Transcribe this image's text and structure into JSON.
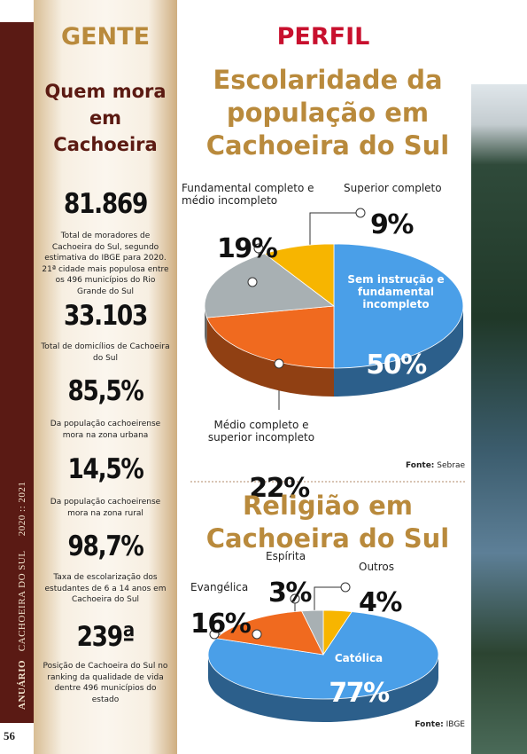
{
  "sidebar": {
    "publication": "ANUÁRIO",
    "title": "CACHOEIRA DO SUL",
    "years": "2020 :: 2021",
    "page": "56"
  },
  "left": {
    "heading": "GENTE",
    "subtitle": "Quem mora em Cachoeira",
    "stats": [
      {
        "value": "81.869",
        "text": "Total de moradores de Cachoeira do Sul, segundo estimativa do IBGE para 2020. 21ª cidade mais populosa entre os 496 municípios do Rio Grande do Sul"
      },
      {
        "value": "33.103",
        "text": "Total de domicílios de Cachoeira do Sul"
      },
      {
        "value": "85,5%",
        "text": "Da população cachoeirense mora na zona urbana"
      },
      {
        "value": "14,5%",
        "text": "Da população cachoeirense mora na zona rural"
      },
      {
        "value": "98,7%",
        "text": "Taxa de escolarização dos estudantes de 6 a 14 anos em Cachoeira do Sul"
      },
      {
        "value": "239ª",
        "text": "Posição de Cachoeira do Sul no ranking da qualidade de vida dentre 496 municípios do estado"
      }
    ]
  },
  "right": {
    "heading": "PERFIL"
  },
  "chart_data": [
    {
      "type": "pie",
      "title": "Escolaridade da população em Cachoeira do Sul",
      "categories": [
        "Sem instrução e fundamental incompleto",
        "Médio completo e superior incompleto",
        "Fundamental completo e médio incompleto",
        "Superior completo"
      ],
      "values": [
        50,
        22,
        19,
        9
      ],
      "value_labels": [
        "50%",
        "22%",
        "19%",
        "9%"
      ],
      "colors": [
        "#4a9fe8",
        "#f06a1f",
        "#a8b0b3",
        "#f7b500"
      ],
      "source_label": "Fonte:",
      "source": "Sebrae"
    },
    {
      "type": "pie",
      "title": "Religião em Cachoeira do Sul",
      "categories": [
        "Outros",
        "Católica",
        "Evangélica",
        "Espírita"
      ],
      "values": [
        4,
        77,
        16,
        3
      ],
      "value_labels": [
        "4%",
        "77%",
        "16%",
        "3%"
      ],
      "colors": [
        "#f7b500",
        "#4a9fe8",
        "#f06a1f",
        "#a8b0b3"
      ],
      "source_label": "Fonte:",
      "source": "IBGE"
    }
  ]
}
